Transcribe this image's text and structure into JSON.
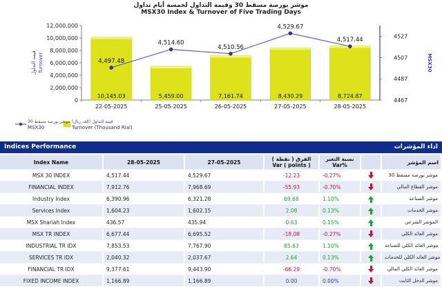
{
  "colors": {
    "bar_fill": "#dde21b",
    "bar_top": "#f0f47a",
    "line": "#5a5fd0",
    "axis_right": "#3c3ca0",
    "header_bg": "#0f2d8c",
    "red": "#c0163c",
    "green": "#22a035"
  },
  "chart_data": {
    "type": "bar",
    "title": "موشر بورصة مسقط 30 وقيمة التداول لخمسة أيام تداول",
    "subtitle": "MSX30 Index & Turnover of Five Trading Days",
    "categories": [
      "22-05-2025",
      "25-05-2025",
      "26-05-2025",
      "27-05-2025",
      "28-05-2025"
    ],
    "series": [
      {
        "name": "Turnover (Thousand Rial)",
        "name_ar": "قيمة التداول (الف ريال)",
        "type": "bar",
        "axis": "left",
        "values": [
          10145.03,
          5459.0,
          7161.74,
          8430.29,
          8724.87
        ],
        "labels": [
          "10,145.03",
          "5,459.00",
          "7,161.74",
          "8,430.29",
          "8,724.87"
        ]
      },
      {
        "name": "MSX30",
        "name_ar": "موشر بورصة مسقط 30",
        "type": "line",
        "axis": "right",
        "values": [
          4497.48,
          4514.6,
          4510.56,
          4529.67,
          4517.44
        ],
        "labels": [
          "4,497.48",
          "4,514.60",
          "4,510.56",
          "4,529.67",
          "4,517.44"
        ]
      }
    ],
    "left_axis": {
      "label_ar": "قيمة التداول",
      "label": "Turnover",
      "ylim": [
        0,
        12000000
      ],
      "ticks": [
        "0",
        "2,000,000",
        "4,000,000",
        "6,000,000",
        "8,000,000",
        "10,000,000",
        "12,000,000"
      ]
    },
    "right_axis": {
      "label": "MSX30",
      "ylim": [
        4467,
        4537
      ],
      "ticks": [
        "4467",
        "4487",
        "4507",
        "4527"
      ]
    },
    "legend_position": "bottom-left",
    "grid": false
  },
  "table": {
    "title_en": "Indices Performance",
    "title_ar": "اداء المؤشرات",
    "headers": {
      "name": "Index Name",
      "d1": "28-05-2025",
      "d2": "27-05-2025",
      "var_ar": "الفرق ( نقطة )",
      "var_en": "Var ( points )",
      "pct_ar": "نسبة التغير",
      "pct_en": "Var%",
      "name_ar": "اسم المؤشر"
    },
    "rows": [
      {
        "name": "MSX 30 INDEX",
        "d1": "4,517.44",
        "d2": "4,529.67",
        "var": "-12.23",
        "pct": "-0.27%",
        "dir": "down",
        "ar": "موشر بورصة مسقط 30"
      },
      {
        "name": "FINANCIAL INDEX",
        "d1": "7,912.76",
        "d2": "7,968.69",
        "var": "-55.93",
        "pct": "-0.70%",
        "dir": "down",
        "ar": "موشر القطاع المالي"
      },
      {
        "name": "Industry Index",
        "d1": "6,390.96",
        "d2": "6,321.28",
        "var": "69.68",
        "pct": "1.10%",
        "dir": "up",
        "ar": "موشر الصناعة"
      },
      {
        "name": "Services Index",
        "d1": "1,604.23",
        "d2": "1,602.15",
        "var": "2.08",
        "pct": "0.13%",
        "dir": "up",
        "ar": "موشر الخدمات"
      },
      {
        "name": "MSX Shariah Index",
        "d1": "436.57",
        "d2": "435.94",
        "var": "0.63",
        "pct": "0.15%",
        "dir": "up",
        "ar": "المؤشر الشرعي"
      },
      {
        "name": "MSX TR INDEX",
        "d1": "6,677.44",
        "d2": "6,695.52",
        "var": "-18.08",
        "pct": "-0.27%",
        "dir": "down",
        "ar": "موشر العائد الكلي"
      },
      {
        "name": "INDUSTRIAL TR IDX",
        "d1": "7,853.53",
        "d2": "7,767.90",
        "var": "85.63",
        "pct": "1.10%",
        "dir": "up",
        "ar": "موشر العائد الكلي للصناعة"
      },
      {
        "name": "SERVICES TR IDX",
        "d1": "2,040.32",
        "d2": "2,037.67",
        "var": "2.64",
        "pct": "0.13%",
        "dir": "up",
        "ar": "موشر العائد الكلي للخدمات"
      },
      {
        "name": "FINANCIAL TR IDX",
        "d1": "9,377.61",
        "d2": "9,443.90",
        "var": "-66.29",
        "pct": "-0.70%",
        "dir": "down",
        "ar": "موشر العائد الكلي المالي"
      },
      {
        "name": "FIXED INCOME INDEX",
        "d1": "1,166.89",
        "d2": "1,166.89",
        "var": "0.00",
        "pct": "0.00%",
        "dir": "flat",
        "ar": "موشر الدخل الثابت"
      }
    ]
  }
}
